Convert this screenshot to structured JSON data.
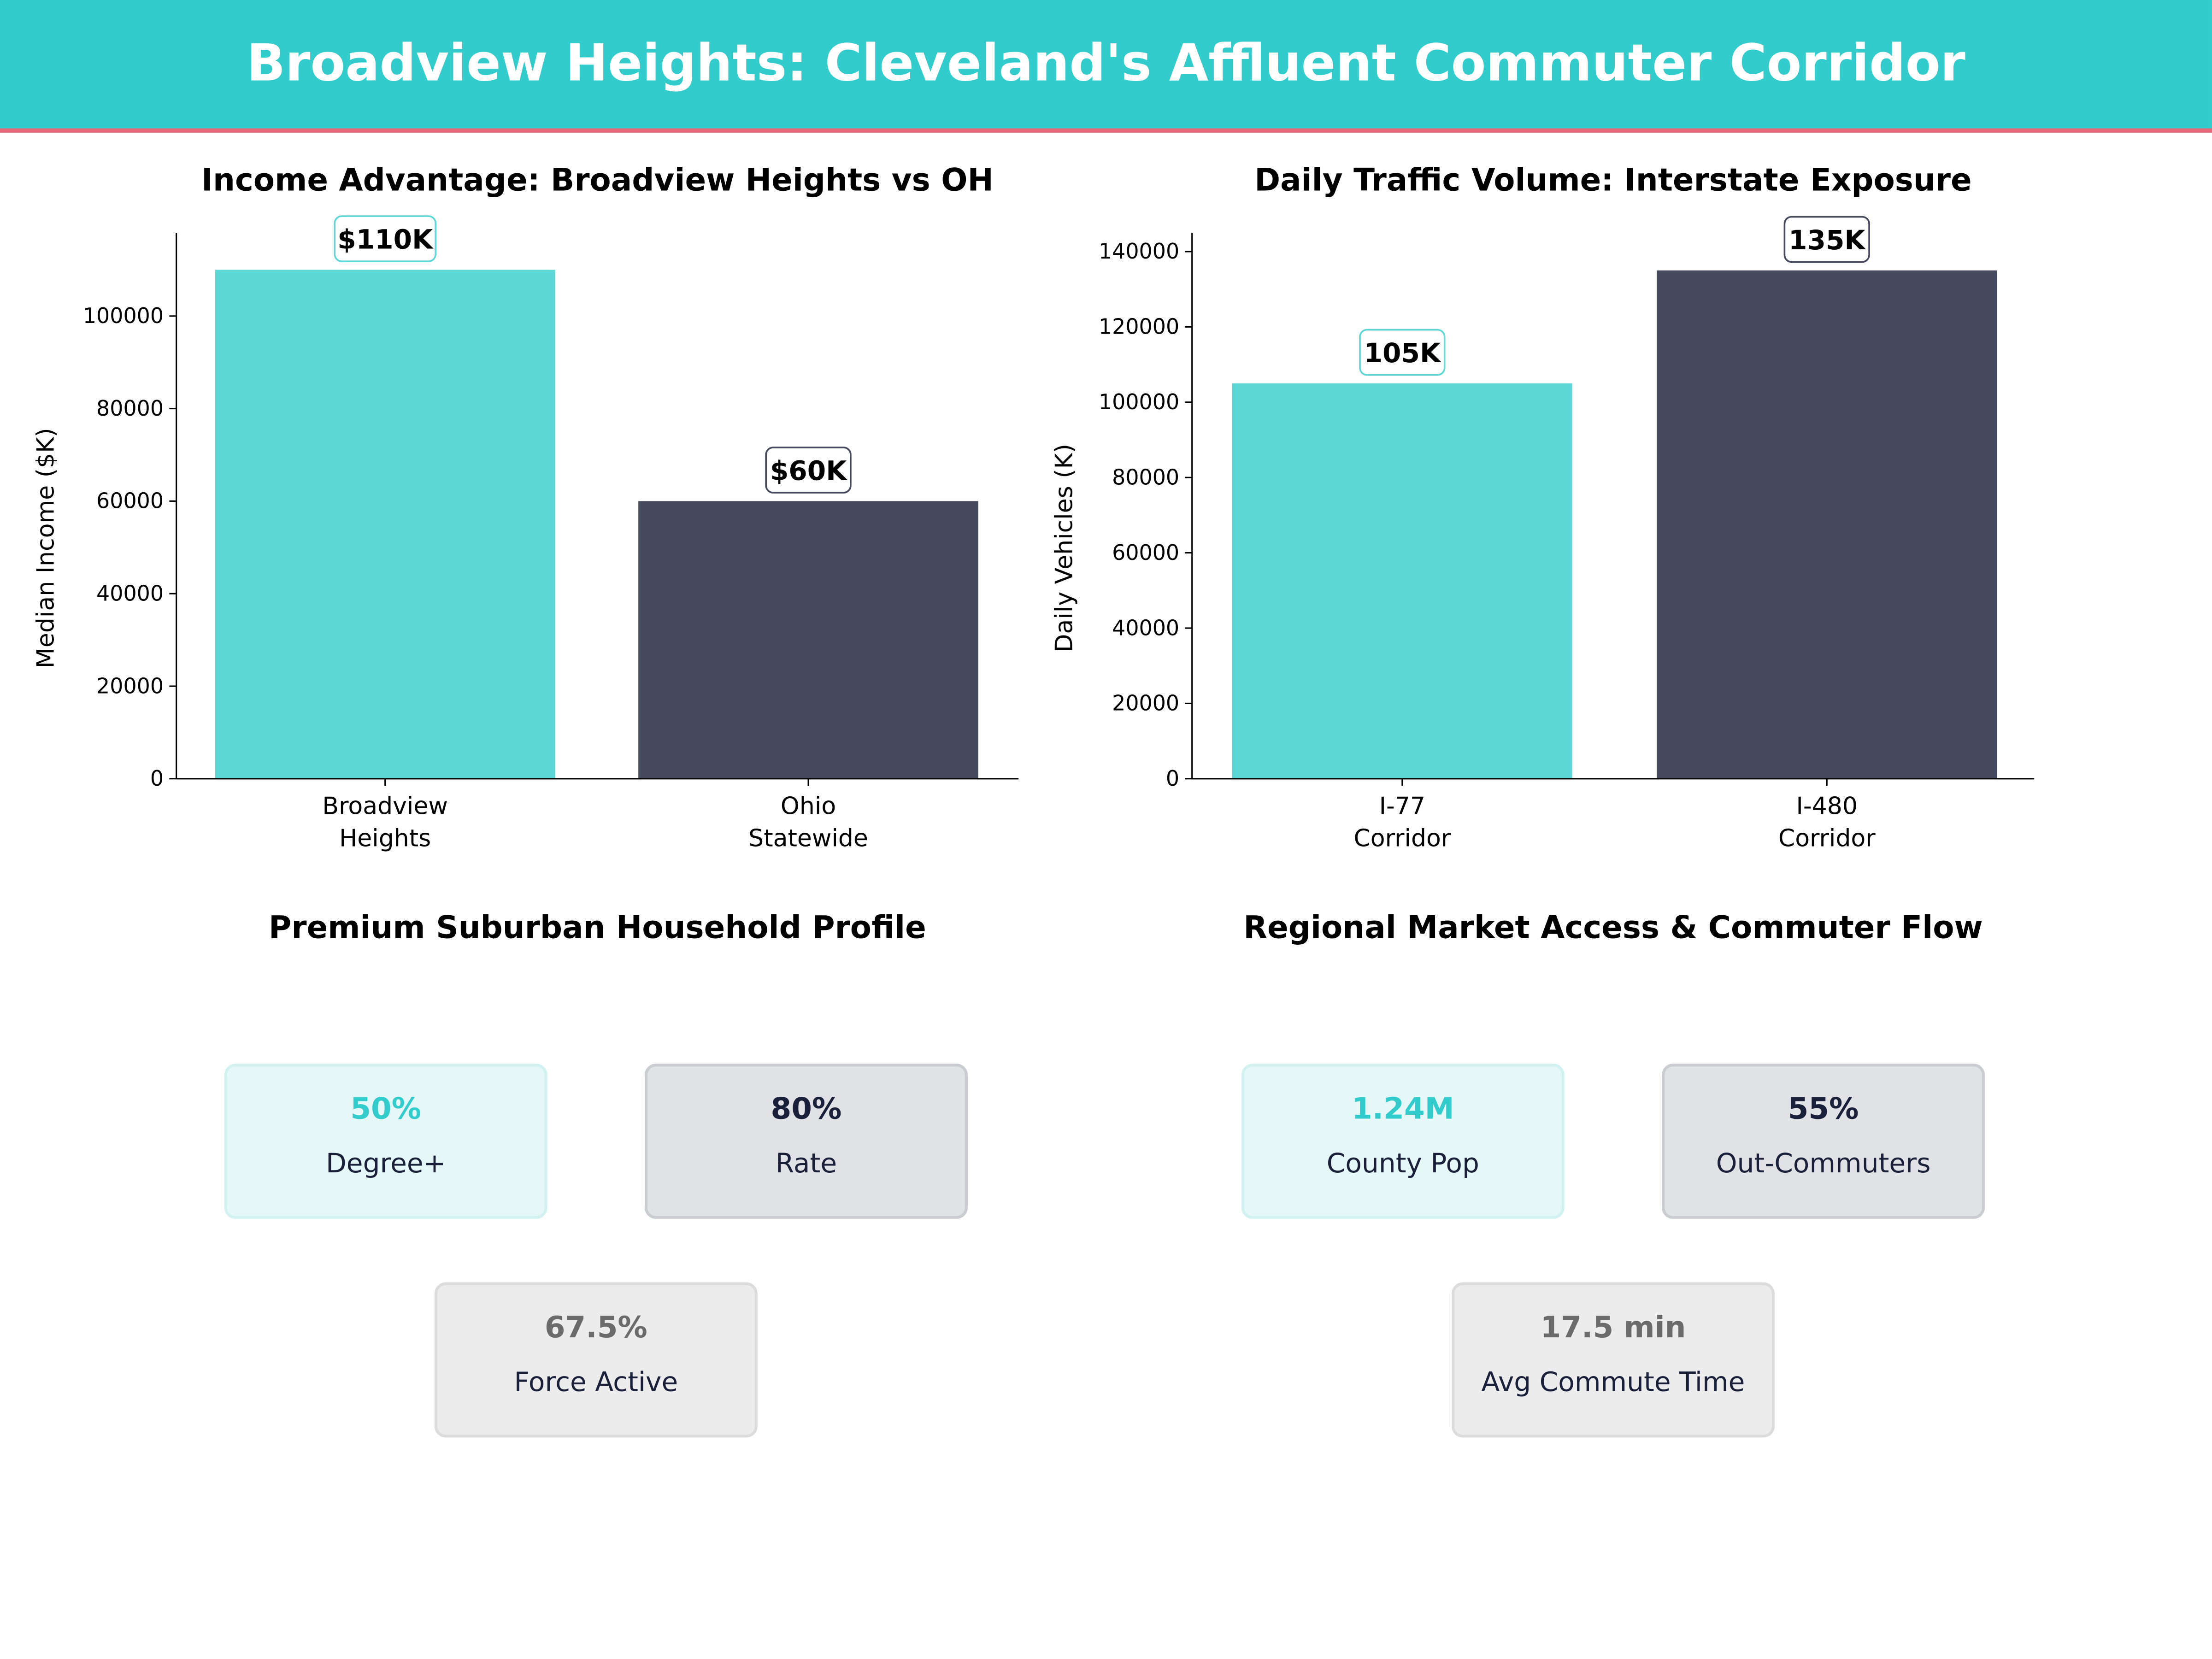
{
  "header": {
    "title": "Broadview Heights: Cleveland's Affluent Commuter Corridor"
  },
  "colors": {
    "teal": "#33cccc",
    "bar_teal": "#5dd8d6",
    "bar_navy": "#464a5e",
    "accent_line": "#e8697a"
  },
  "chart_data": [
    {
      "type": "bar",
      "title": "Income Advantage: Broadview Heights vs OH",
      "xlabel": "",
      "ylabel": "Median Income ($K)",
      "categories": [
        [
          "Broadview",
          "Heights"
        ],
        [
          "Ohio",
          "Statewide"
        ]
      ],
      "values": [
        110000,
        60000
      ],
      "data_labels": [
        "$110K",
        "$60K"
      ],
      "bar_colors": [
        "#5dd8d6",
        "#464a5e"
      ],
      "ylim": [
        0,
        118000
      ],
      "yticks": [
        0,
        20000,
        40000,
        60000,
        80000,
        100000
      ],
      "grid": false
    },
    {
      "type": "bar",
      "title": "Daily Traffic Volume: Interstate Exposure",
      "xlabel": "",
      "ylabel": "Daily Vehicles (K)",
      "categories": [
        [
          "I-77",
          "Corridor"
        ],
        [
          "I-480",
          "Corridor"
        ]
      ],
      "values": [
        105000,
        135000
      ],
      "data_labels": [
        "105K",
        "135K"
      ],
      "bar_colors": [
        "#5dd8d6",
        "#464a5e"
      ],
      "ylim": [
        0,
        145000
      ],
      "yticks": [
        0,
        20000,
        40000,
        60000,
        80000,
        100000,
        120000,
        140000
      ],
      "grid": false
    }
  ],
  "household": {
    "title": "Premium Suburban Household Profile",
    "cards": [
      {
        "value": "50%",
        "label": "Degree+"
      },
      {
        "value": "80%",
        "label": "Rate"
      },
      {
        "value": "67.5%",
        "label": "Force Active"
      }
    ]
  },
  "market": {
    "title": "Regional Market Access & Commuter Flow",
    "cards": [
      {
        "value": "1.24M",
        "label": "County Pop"
      },
      {
        "value": "55%",
        "label": "Out-Commuters"
      },
      {
        "value": "17.5 min",
        "label": "Avg Commute Time"
      }
    ]
  }
}
